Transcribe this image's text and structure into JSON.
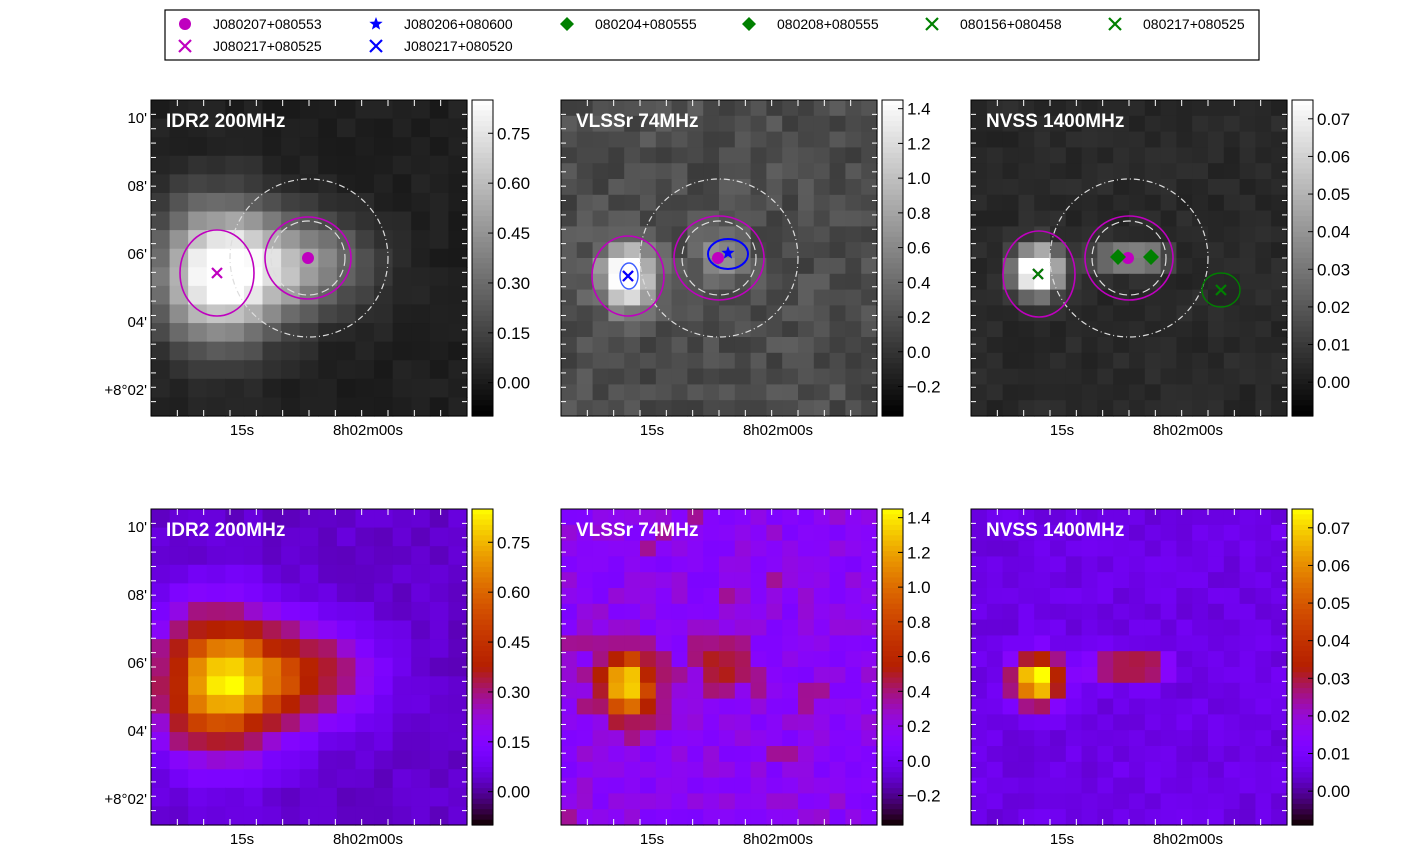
{
  "legend": {
    "items": [
      {
        "label": "J080207+080553",
        "marker": "circle",
        "color": "#bf00bf"
      },
      {
        "label": "J080217+080525",
        "marker": "x",
        "color": "#bf00bf"
      },
      {
        "label": "J080206+080600",
        "marker": "star",
        "color": "#0000ff"
      },
      {
        "label": "J080217+080520",
        "marker": "x",
        "color": "#0000ff"
      },
      {
        "label": "080204+080555",
        "marker": "diamond",
        "color": "#008000"
      },
      {
        "label": "080208+080555",
        "marker": "diamond",
        "color": "#008000"
      },
      {
        "label": "080156+080458",
        "marker": "x",
        "color": "#008000"
      },
      {
        "label": "080217+080525",
        "marker": "x",
        "color": "#008000"
      }
    ]
  },
  "chart_data": [
    {
      "type": "heatmap",
      "colormap": "gray",
      "title": "IDR2 200MHz",
      "x_ticks": [
        "15s",
        "8h02m00s"
      ],
      "y_ticks": [
        "10'",
        "08'",
        "06'",
        "04'",
        "+8°02'"
      ],
      "colorbar_ticks": [
        "0.75",
        "0.60",
        "0.45",
        "0.30",
        "0.15",
        "0.00"
      ],
      "colorbar_range": [
        -0.1,
        0.85
      ]
    },
    {
      "type": "heatmap",
      "colormap": "gray",
      "title": "VLSSr 74MHz",
      "x_ticks": [
        "15s",
        "8h02m00s"
      ],
      "colorbar_ticks": [
        "1.4",
        "1.2",
        "1.0",
        "0.8",
        "0.6",
        "0.4",
        "0.2",
        "0.0",
        "−0.2"
      ],
      "colorbar_range": [
        -0.37,
        1.45
      ]
    },
    {
      "type": "heatmap",
      "colormap": "gray",
      "title": "NVSS 1400MHz",
      "x_ticks": [
        "15s",
        "8h02m00s"
      ],
      "colorbar_ticks": [
        "0.07",
        "0.06",
        "0.05",
        "0.04",
        "0.03",
        "0.02",
        "0.01",
        "0.00"
      ],
      "colorbar_range": [
        -0.009,
        0.075
      ]
    },
    {
      "type": "heatmap",
      "colormap": "gnuplot",
      "title": "IDR2 200MHz",
      "x_ticks": [
        "15s",
        "8h02m00s"
      ],
      "y_ticks": [
        "10'",
        "08'",
        "06'",
        "04'",
        "+8°02'"
      ],
      "colorbar_ticks": [
        "0.75",
        "0.60",
        "0.45",
        "0.30",
        "0.15",
        "0.00"
      ],
      "colorbar_range": [
        -0.1,
        0.85
      ]
    },
    {
      "type": "heatmap",
      "colormap": "gnuplot",
      "title": "VLSSr 74MHz",
      "x_ticks": [
        "15s",
        "8h02m00s"
      ],
      "colorbar_ticks": [
        "1.4",
        "1.2",
        "1.0",
        "0.8",
        "0.6",
        "0.4",
        "0.2",
        "0.0",
        "−0.2"
      ],
      "colorbar_range": [
        -0.37,
        1.45
      ]
    },
    {
      "type": "heatmap",
      "colormap": "gnuplot",
      "title": "NVSS 1400MHz",
      "x_ticks": [
        "15s",
        "8h02m00s"
      ],
      "colorbar_ticks": [
        "0.07",
        "0.06",
        "0.05",
        "0.04",
        "0.03",
        "0.02",
        "0.01",
        "0.00"
      ],
      "colorbar_range": [
        -0.009,
        0.075
      ]
    }
  ]
}
